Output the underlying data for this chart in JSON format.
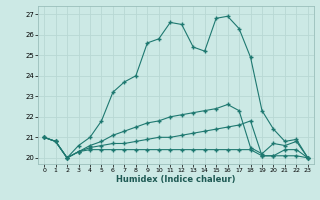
{
  "xlabel": "Humidex (Indice chaleur)",
  "bg_color": "#cce9e5",
  "grid_color": "#b8d8d4",
  "line_color": "#1e7870",
  "xlim": [
    -0.5,
    23.5
  ],
  "ylim": [
    19.7,
    27.4
  ],
  "yticks": [
    20,
    21,
    22,
    23,
    24,
    25,
    26,
    27
  ],
  "xticks": [
    0,
    1,
    2,
    3,
    4,
    5,
    6,
    7,
    8,
    9,
    10,
    11,
    12,
    13,
    14,
    15,
    16,
    17,
    18,
    19,
    20,
    21,
    22,
    23
  ],
  "series": [
    [
      21.0,
      20.8,
      20.0,
      20.3,
      20.4,
      20.4,
      20.4,
      20.4,
      20.4,
      20.4,
      20.4,
      20.4,
      20.4,
      20.4,
      20.4,
      20.4,
      20.4,
      20.4,
      20.4,
      20.1,
      20.1,
      20.1,
      20.1,
      20.0
    ],
    [
      21.0,
      20.8,
      20.0,
      20.3,
      20.5,
      20.6,
      20.7,
      20.7,
      20.8,
      20.9,
      21.0,
      21.0,
      21.1,
      21.2,
      21.3,
      21.4,
      21.5,
      21.6,
      21.8,
      20.1,
      20.1,
      20.4,
      20.4,
      20.0
    ],
    [
      21.0,
      20.8,
      20.0,
      20.3,
      20.6,
      20.8,
      21.1,
      21.3,
      21.5,
      21.7,
      21.8,
      22.0,
      22.1,
      22.2,
      22.3,
      22.4,
      22.6,
      22.3,
      20.5,
      20.2,
      20.7,
      20.6,
      20.8,
      20.0
    ],
    [
      21.0,
      20.8,
      20.0,
      20.6,
      21.0,
      21.8,
      23.2,
      23.7,
      24.0,
      25.6,
      25.8,
      26.6,
      26.5,
      25.4,
      25.2,
      26.8,
      26.9,
      26.3,
      24.9,
      22.3,
      21.4,
      20.8,
      20.9,
      20.0
    ]
  ]
}
